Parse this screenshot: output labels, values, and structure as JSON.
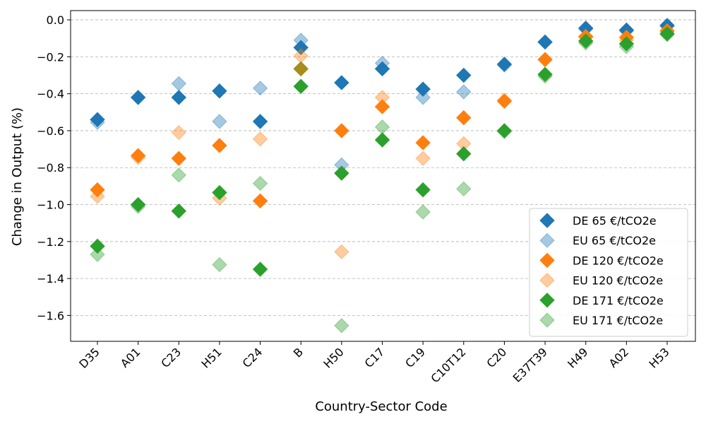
{
  "chart_data": {
    "type": "scatter",
    "title": "",
    "xlabel": "Country-Sector Code",
    "ylabel": "Change in Output (%)",
    "categories": [
      "D35",
      "A01",
      "C23",
      "H51",
      "C24",
      "B",
      "H50",
      "C17",
      "C19",
      "C10T12",
      "C20",
      "E37T39",
      "H49",
      "A02",
      "H53"
    ],
    "ylim": [
      -1.74,
      0.05
    ],
    "yticks": [
      0.0,
      -0.2,
      -0.4,
      -0.6,
      -0.8,
      -1.0,
      -1.2,
      -1.4,
      -1.6
    ],
    "ytick_labels": [
      "0.0",
      "−0.2",
      "−0.4",
      "−0.6",
      "−0.8",
      "−1.0",
      "−1.2",
      "−1.4",
      "−1.6"
    ],
    "grid": "horizontal dashed",
    "legend_position": "lower-right",
    "series": [
      {
        "name": "DE 65 €/tCO2e",
        "color": "#1f77b4",
        "alpha": 1.0,
        "values": [
          -0.54,
          -0.42,
          -0.42,
          -0.385,
          -0.55,
          -0.15,
          -0.34,
          -0.265,
          -0.375,
          -0.3,
          -0.24,
          -0.12,
          -0.045,
          -0.055,
          -0.03
        ]
      },
      {
        "name": "EU 65 €/tCO2e",
        "color": "#1f77b4",
        "alpha": 0.4,
        "values": [
          -0.555,
          -0.42,
          -0.345,
          -0.55,
          -0.37,
          -0.11,
          -0.785,
          -0.235,
          -0.42,
          -0.39,
          -0.245,
          -0.12,
          -0.05,
          -0.06,
          -0.035
        ]
      },
      {
        "name": "DE 120 €/tCO2e",
        "color": "#ff7f0e",
        "alpha": 1.0,
        "values": [
          -0.92,
          -0.735,
          -0.75,
          -0.68,
          -0.98,
          -0.265,
          -0.6,
          -0.47,
          -0.665,
          -0.53,
          -0.44,
          -0.215,
          -0.09,
          -0.095,
          -0.06
        ]
      },
      {
        "name": "EU 120 €/tCO2e",
        "color": "#ff7f0e",
        "alpha": 0.4,
        "values": [
          -0.955,
          -0.745,
          -0.61,
          -0.965,
          -0.645,
          -0.195,
          -1.255,
          -0.42,
          -0.75,
          -0.67,
          -0.435,
          -0.215,
          -0.095,
          -0.11,
          -0.06
        ]
      },
      {
        "name": "DE 171 €/tCO2e",
        "color": "#2ca02c",
        "alpha": 1.0,
        "values": [
          -1.225,
          -1.0,
          -1.035,
          -0.935,
          -1.35,
          -0.36,
          -0.83,
          -0.65,
          -0.92,
          -0.725,
          -0.6,
          -0.295,
          -0.115,
          -0.13,
          -0.075
        ]
      },
      {
        "name": "EU 171 €/tCO2e",
        "color": "#2ca02c",
        "alpha": 0.4,
        "values": [
          -1.27,
          -1.01,
          -0.84,
          -1.325,
          -0.885,
          -0.265,
          -1.655,
          -0.58,
          -1.04,
          -0.915,
          -0.605,
          -0.305,
          -0.125,
          -0.145,
          -0.08
        ]
      }
    ]
  }
}
